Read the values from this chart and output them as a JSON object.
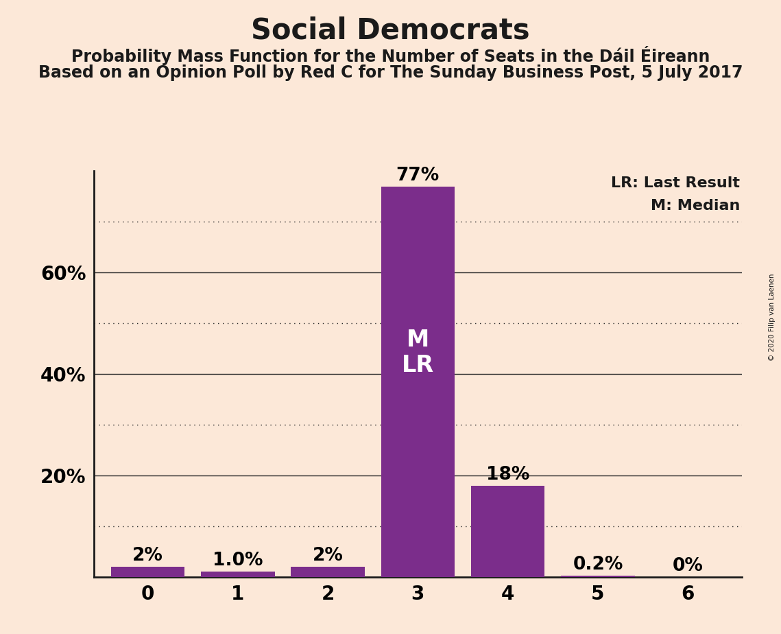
{
  "title": "Social Democrats",
  "subtitle1": "Probability Mass Function for the Number of Seats in the Dáil Éireann",
  "subtitle2": "Based on an Opinion Poll by Red C for The Sunday Business Post, 5 July 2017",
  "copyright": "© 2020 Filip van Laenen",
  "categories": [
    0,
    1,
    2,
    3,
    4,
    5,
    6
  ],
  "values": [
    0.02,
    0.01,
    0.02,
    0.77,
    0.18,
    0.002,
    0.0
  ],
  "bar_labels": [
    "2%",
    "1.0%",
    "2%",
    "77%",
    "18%",
    "0.2%",
    "0%"
  ],
  "bar_color": "#7b2d8b",
  "background_color": "#fce8d8",
  "median_seat": 3,
  "last_result_seat": 3,
  "median_label": "M",
  "lr_label": "LR",
  "legend_lr": "LR: Last Result",
  "legend_m": "M: Median",
  "ylim": [
    0,
    0.8
  ],
  "solid_gridlines": [
    0.2,
    0.4,
    0.6
  ],
  "dotted_gridlines": [
    0.1,
    0.3,
    0.5,
    0.7
  ],
  "ytick_labeled": {
    "0.2": "20%",
    "0.4": "40%",
    "0.6": "60%"
  },
  "title_fontsize": 30,
  "subtitle_fontsize": 17,
  "label_fontsize": 19,
  "tick_fontsize": 20,
  "bar_width": 0.82
}
